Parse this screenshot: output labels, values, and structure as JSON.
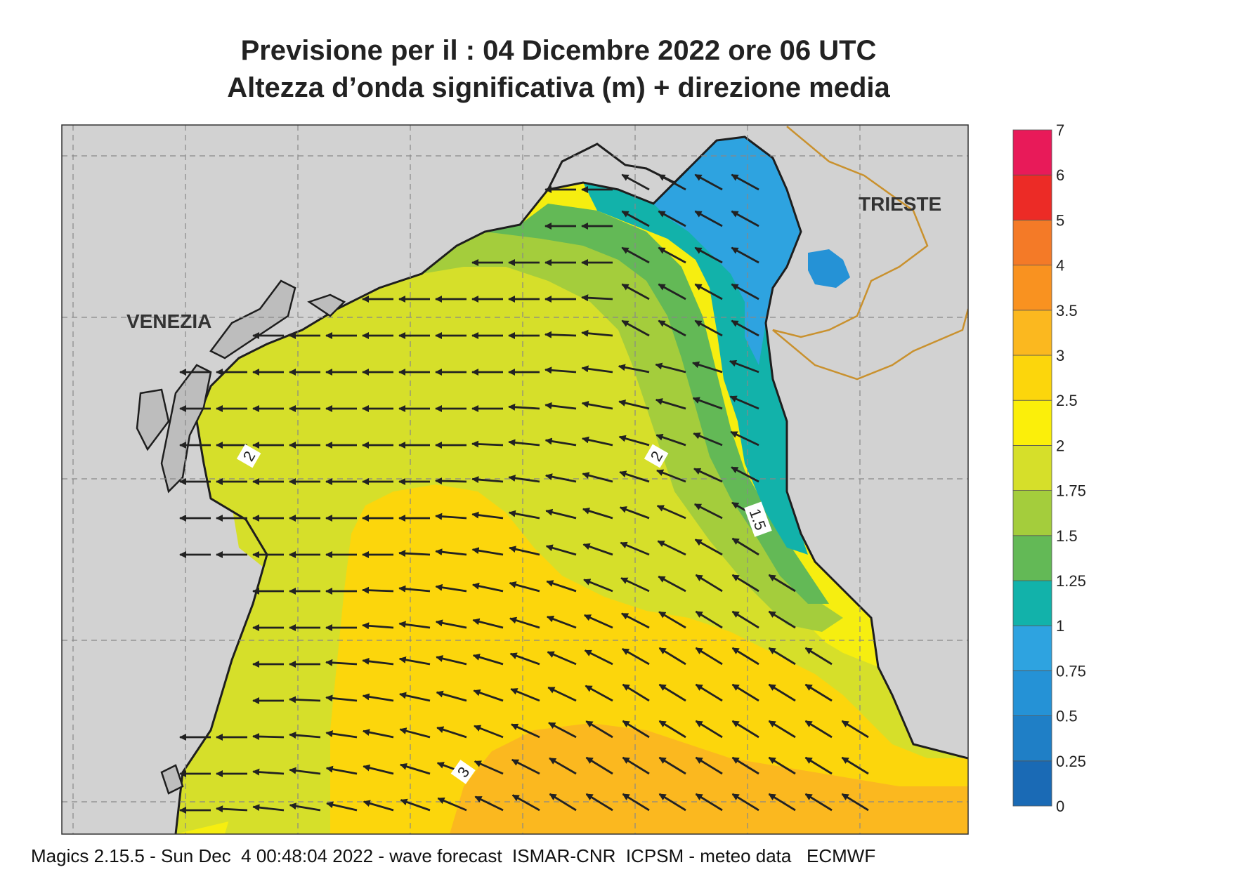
{
  "title_line1": "Previsione per il  :  04 Dicembre  2022   ore 06 UTC",
  "title_line2": "Altezza d’onda significativa (m) + direzione media",
  "cities": [
    "VENEZIA",
    "TRIESTE"
  ],
  "contour_labels": [
    "2",
    "2",
    "1.5",
    "3"
  ],
  "legend": {
    "labels": [
      "0",
      "0.25",
      "0.5",
      "0.75",
      "1",
      "1.25",
      "1.5",
      "1.75",
      "2",
      "2.5",
      "3",
      "3.5",
      "4",
      "5",
      "6",
      "7"
    ],
    "colors": [
      "#1a6ab5",
      "#1f7fc6",
      "#2592d6",
      "#2ea3e0",
      "#12b2aa",
      "#63b956",
      "#a4cd3c",
      "#d6df2a",
      "#fbef0a",
      "#fcd60c",
      "#fbb81f",
      "#f99220",
      "#f47a27",
      "#ec2b26",
      "#e81a59"
    ]
  },
  "footer": "Magics 2.15.5 - Sun Dec  4 00:48:04 2022 - wave forecast  ISMAR-CNR  ICPSM - meteo data   ECMWF"
}
